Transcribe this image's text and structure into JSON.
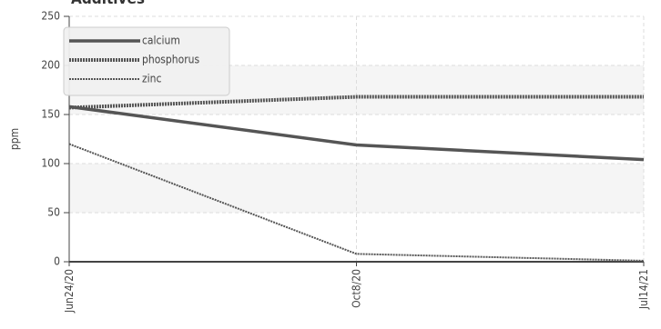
{
  "chart_data": {
    "type": "line",
    "title": "Additives",
    "y_label": "ppm",
    "categories": [
      "Jun24/20",
      "Oct8/20",
      "Jul14/21"
    ],
    "series": [
      {
        "name": "calcium",
        "color": "#555555",
        "values": [
          158,
          119,
          104
        ]
      },
      {
        "name": "phosphorus",
        "color": "#555555",
        "values": [
          157,
          168,
          168
        ]
      },
      {
        "name": "zinc",
        "color": "#555555",
        "values": [
          120,
          8,
          1
        ]
      }
    ],
    "ylim": [
      0,
      250
    ],
    "yticks": [
      0,
      50,
      100,
      150,
      200,
      250
    ],
    "grid": true,
    "legend": "upper left"
  }
}
